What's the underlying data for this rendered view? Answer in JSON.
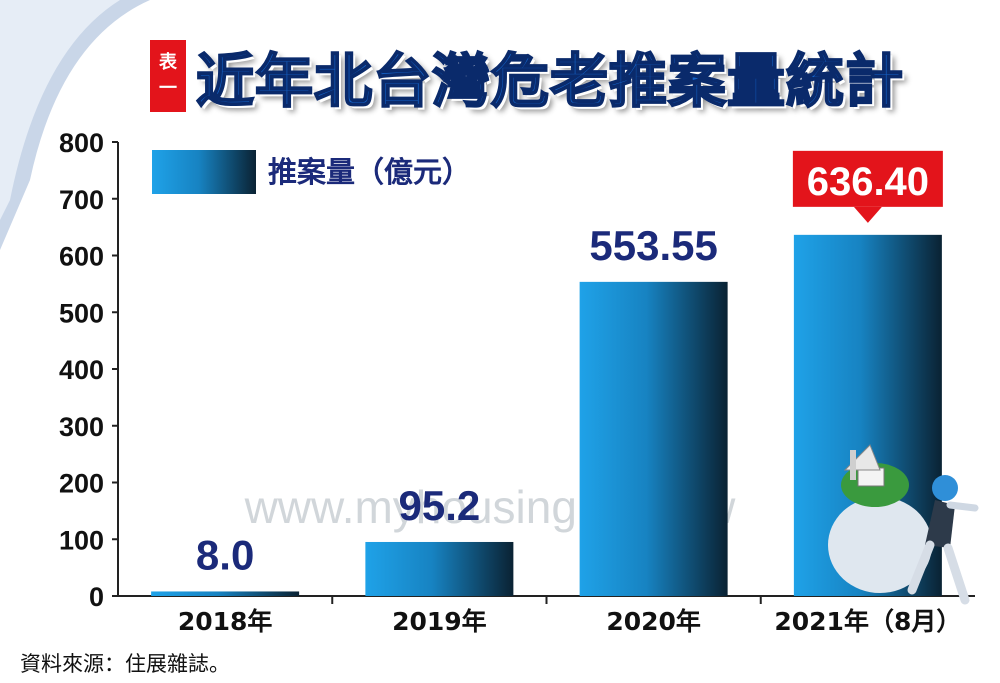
{
  "title": {
    "tag_line1": "表",
    "tag_line2": "一",
    "text": "近年北台灣危老推案量統計"
  },
  "source": "資料來源：住展雜誌。",
  "watermark": "www.myhousing.com.tw",
  "colors": {
    "bar_light": "#1fa2e8",
    "bar_dark": "#0a2233",
    "value_label": "#1b2a7a",
    "highlight": "#e3141b",
    "title": "#1463c8"
  },
  "chart_data": {
    "type": "bar",
    "categories": [
      "2018年",
      "2019年",
      "2020年",
      "2021年（8月）"
    ],
    "values": [
      8.0,
      95.2,
      553.55,
      636.4
    ],
    "value_labels": [
      "8.0",
      "95.2",
      "553.55",
      "636.40"
    ],
    "highlight_index": 3,
    "legend": [
      "推案量（億元）"
    ],
    "legend_position": "top-left",
    "ylim": [
      0,
      800
    ],
    "yticks": [
      0,
      100,
      200,
      300,
      400,
      500,
      600,
      700,
      800
    ],
    "grid": false
  }
}
